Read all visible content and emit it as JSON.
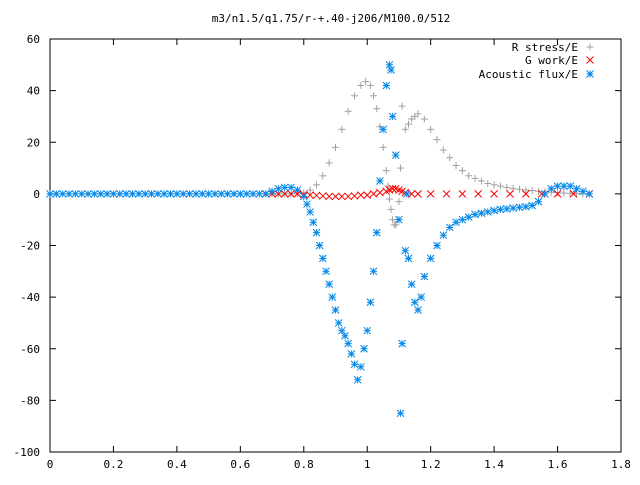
{
  "chart_data": {
    "type": "scatter",
    "title": "m3/n1.5/q1.75/r-+.40-j206/M100.0/512",
    "xlabel": "",
    "ylabel": "",
    "xlim": [
      0,
      1.8
    ],
    "ylim": [
      -100,
      60
    ],
    "x_ticks": [
      "0",
      "0.2",
      "0.4",
      "0.6",
      "0.8",
      "1",
      "1.2",
      "1.4",
      "1.6",
      "1.8"
    ],
    "y_ticks": [
      "60",
      "40",
      "20",
      "0",
      "-20",
      "-40",
      "-60",
      "-80",
      "-100"
    ],
    "grid": false,
    "legend_position": "top-right",
    "series": [
      {
        "name": "R stress/E",
        "marker": "plus",
        "color": "#a0a0a0",
        "points": [
          [
            0.68,
            0
          ],
          [
            0.7,
            0
          ],
          [
            0.72,
            0
          ],
          [
            0.74,
            0
          ],
          [
            0.76,
            0
          ],
          [
            0.78,
            0
          ],
          [
            0.8,
            0.4
          ],
          [
            0.82,
            1.5
          ],
          [
            0.84,
            3.5
          ],
          [
            0.86,
            7
          ],
          [
            0.88,
            12
          ],
          [
            0.9,
            18
          ],
          [
            0.92,
            25
          ],
          [
            0.94,
            32
          ],
          [
            0.96,
            38
          ],
          [
            0.98,
            42
          ],
          [
            0.995,
            43.5
          ],
          [
            1.01,
            42
          ],
          [
            1.02,
            38
          ],
          [
            1.03,
            33
          ],
          [
            1.04,
            26
          ],
          [
            1.05,
            18
          ],
          [
            1.06,
            9
          ],
          [
            1.065,
            3
          ],
          [
            1.07,
            -2
          ],
          [
            1.075,
            -6
          ],
          [
            1.08,
            -10
          ],
          [
            1.085,
            -12
          ],
          [
            1.09,
            -12
          ],
          [
            1.095,
            -10
          ],
          [
            1.1,
            -3
          ],
          [
            1.105,
            10
          ],
          [
            1.11,
            34
          ],
          [
            1.12,
            25
          ],
          [
            1.13,
            27
          ],
          [
            1.14,
            29
          ],
          [
            1.15,
            30
          ],
          [
            1.16,
            31
          ],
          [
            1.18,
            29
          ],
          [
            1.2,
            25
          ],
          [
            1.22,
            21
          ],
          [
            1.24,
            17
          ],
          [
            1.26,
            14
          ],
          [
            1.28,
            11
          ],
          [
            1.3,
            9
          ],
          [
            1.32,
            7
          ],
          [
            1.34,
            6
          ],
          [
            1.36,
            5
          ],
          [
            1.38,
            4
          ],
          [
            1.4,
            3.5
          ],
          [
            1.42,
            3
          ],
          [
            1.44,
            2.5
          ],
          [
            1.46,
            2
          ],
          [
            1.48,
            1.8
          ],
          [
            1.5,
            1.5
          ],
          [
            1.52,
            1.3
          ],
          [
            1.54,
            1
          ],
          [
            1.56,
            0.8
          ],
          [
            1.58,
            0.6
          ],
          [
            1.6,
            0.5
          ],
          [
            1.62,
            0.3
          ],
          [
            1.64,
            0.2
          ],
          [
            1.66,
            0.1
          ],
          [
            1.68,
            0
          ],
          [
            1.7,
            0
          ]
        ]
      },
      {
        "name": "G work/E",
        "marker": "cross",
        "color": "#ff0000",
        "points": [
          [
            0.68,
            0
          ],
          [
            0.7,
            0
          ],
          [
            0.72,
            0
          ],
          [
            0.74,
            0
          ],
          [
            0.76,
            0
          ],
          [
            0.78,
            0
          ],
          [
            0.8,
            -0.3
          ],
          [
            0.82,
            -0.5
          ],
          [
            0.84,
            -0.6
          ],
          [
            0.86,
            -0.8
          ],
          [
            0.88,
            -1
          ],
          [
            0.9,
            -1
          ],
          [
            0.92,
            -1
          ],
          [
            0.94,
            -1
          ],
          [
            0.96,
            -0.8
          ],
          [
            0.98,
            -0.5
          ],
          [
            1,
            -0.5
          ],
          [
            1.02,
            0
          ],
          [
            1.04,
            0.5
          ],
          [
            1.06,
            1
          ],
          [
            1.07,
            1.5
          ],
          [
            1.08,
            2
          ],
          [
            1.09,
            2
          ],
          [
            1.1,
            1.5
          ],
          [
            1.11,
            1
          ],
          [
            1.12,
            0.5
          ],
          [
            1.14,
            0
          ],
          [
            1.16,
            0
          ],
          [
            1.2,
            0
          ],
          [
            1.25,
            0
          ],
          [
            1.3,
            0
          ],
          [
            1.35,
            0
          ],
          [
            1.4,
            0
          ],
          [
            1.45,
            0
          ],
          [
            1.5,
            0
          ],
          [
            1.55,
            0
          ],
          [
            1.6,
            0
          ],
          [
            1.65,
            0
          ],
          [
            1.7,
            0
          ]
        ]
      },
      {
        "name": "Acoustic flux/E",
        "marker": "star",
        "color": "#0087e8",
        "points": [
          [
            0,
            0
          ],
          [
            0.02,
            0
          ],
          [
            0.04,
            0
          ],
          [
            0.06,
            0
          ],
          [
            0.08,
            0
          ],
          [
            0.1,
            0
          ],
          [
            0.12,
            0
          ],
          [
            0.14,
            0
          ],
          [
            0.16,
            0
          ],
          [
            0.18,
            0
          ],
          [
            0.2,
            0
          ],
          [
            0.22,
            0
          ],
          [
            0.24,
            0
          ],
          [
            0.26,
            0
          ],
          [
            0.28,
            0
          ],
          [
            0.3,
            0
          ],
          [
            0.32,
            0
          ],
          [
            0.34,
            0
          ],
          [
            0.36,
            0
          ],
          [
            0.38,
            0
          ],
          [
            0.4,
            0
          ],
          [
            0.42,
            0
          ],
          [
            0.44,
            0
          ],
          [
            0.46,
            0
          ],
          [
            0.48,
            0
          ],
          [
            0.5,
            0
          ],
          [
            0.52,
            0
          ],
          [
            0.54,
            0
          ],
          [
            0.56,
            0
          ],
          [
            0.58,
            0
          ],
          [
            0.6,
            0
          ],
          [
            0.62,
            0
          ],
          [
            0.64,
            0
          ],
          [
            0.66,
            0
          ],
          [
            0.68,
            0
          ],
          [
            0.7,
            1
          ],
          [
            0.72,
            2
          ],
          [
            0.74,
            2.5
          ],
          [
            0.76,
            2.5
          ],
          [
            0.78,
            1.5
          ],
          [
            0.8,
            -1
          ],
          [
            0.81,
            -4
          ],
          [
            0.82,
            -7
          ],
          [
            0.83,
            -11
          ],
          [
            0.84,
            -15
          ],
          [
            0.85,
            -20
          ],
          [
            0.86,
            -25
          ],
          [
            0.87,
            -30
          ],
          [
            0.88,
            -35
          ],
          [
            0.89,
            -40
          ],
          [
            0.9,
            -45
          ],
          [
            0.91,
            -50
          ],
          [
            0.92,
            -53
          ],
          [
            0.93,
            -55
          ],
          [
            0.94,
            -58
          ],
          [
            0.95,
            -62
          ],
          [
            0.96,
            -66
          ],
          [
            0.97,
            -72
          ],
          [
            0.98,
            -67
          ],
          [
            0.99,
            -60
          ],
          [
            1,
            -53
          ],
          [
            1.01,
            -42
          ],
          [
            1.02,
            -30
          ],
          [
            1.03,
            -15
          ],
          [
            1.04,
            5
          ],
          [
            1.05,
            25
          ],
          [
            1.06,
            42
          ],
          [
            1.07,
            50
          ],
          [
            1.075,
            48
          ],
          [
            1.08,
            30
          ],
          [
            1.09,
            15
          ],
          [
            1.1,
            -10
          ],
          [
            1.105,
            -85
          ],
          [
            1.11,
            -58
          ],
          [
            1.12,
            -22
          ],
          [
            1.125,
            0
          ],
          [
            1.13,
            -25
          ],
          [
            1.14,
            -35
          ],
          [
            1.15,
            -42
          ],
          [
            1.16,
            -45
          ],
          [
            1.17,
            -40
          ],
          [
            1.18,
            -32
          ],
          [
            1.2,
            -25
          ],
          [
            1.22,
            -20
          ],
          [
            1.24,
            -16
          ],
          [
            1.26,
            -13
          ],
          [
            1.28,
            -11
          ],
          [
            1.3,
            -10
          ],
          [
            1.32,
            -9
          ],
          [
            1.34,
            -8
          ],
          [
            1.36,
            -7.5
          ],
          [
            1.38,
            -7
          ],
          [
            1.4,
            -6.5
          ],
          [
            1.42,
            -6
          ],
          [
            1.44,
            -5.8
          ],
          [
            1.46,
            -5.5
          ],
          [
            1.48,
            -5.2
          ],
          [
            1.5,
            -5
          ],
          [
            1.52,
            -4.5
          ],
          [
            1.54,
            -3
          ],
          [
            1.56,
            0
          ],
          [
            1.58,
            2
          ],
          [
            1.6,
            3
          ],
          [
            1.62,
            3
          ],
          [
            1.64,
            3
          ],
          [
            1.66,
            2
          ],
          [
            1.68,
            1
          ],
          [
            1.7,
            0
          ]
        ]
      }
    ]
  }
}
